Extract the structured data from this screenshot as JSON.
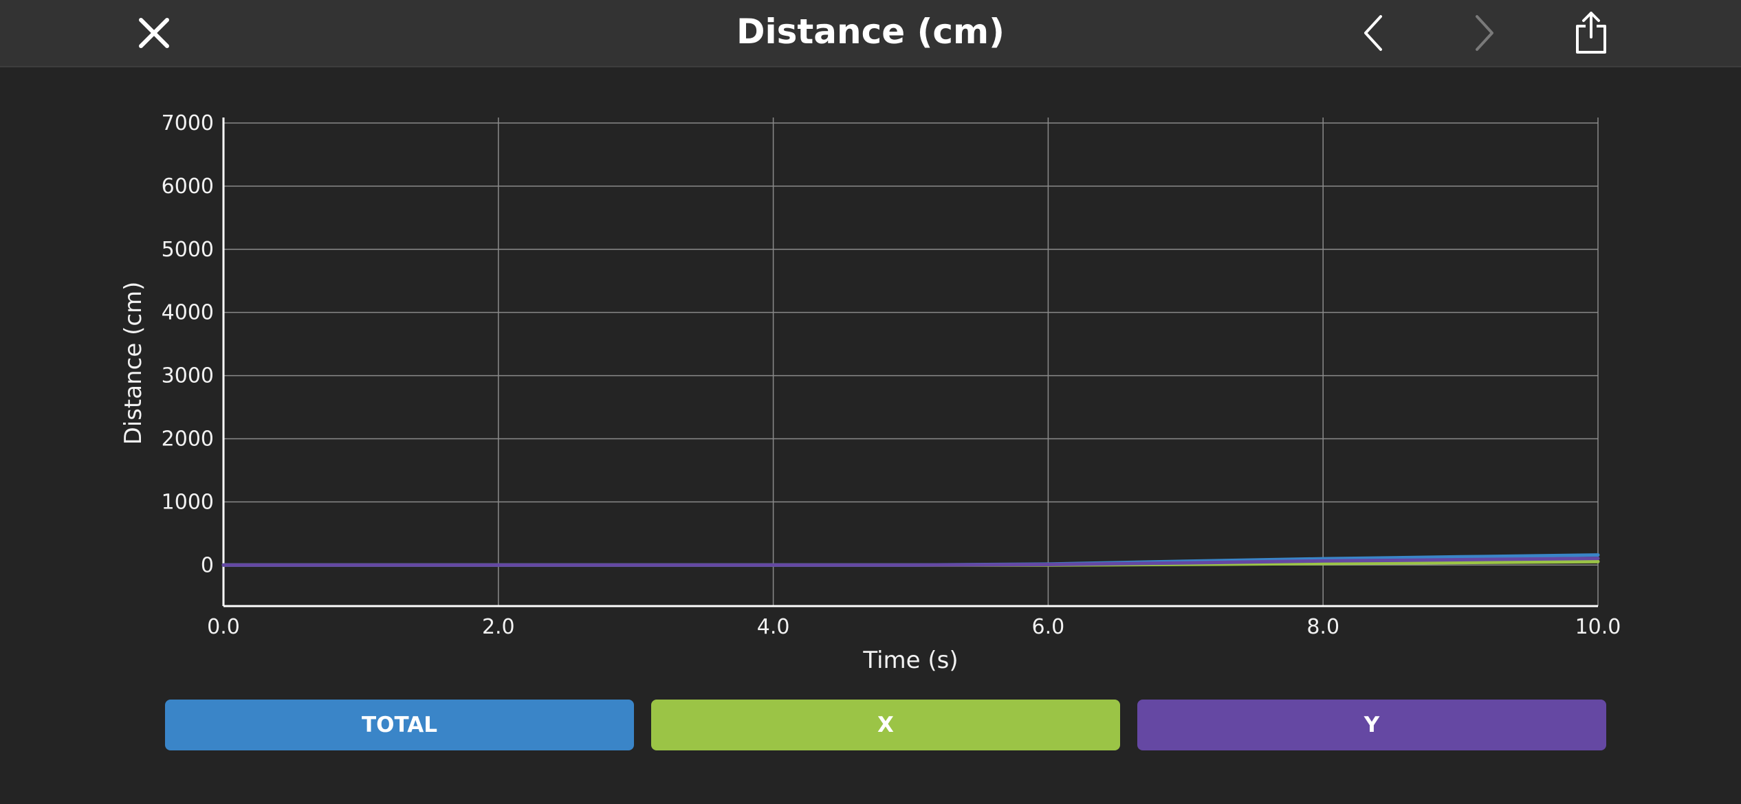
{
  "header": {
    "title": "Distance (cm)"
  },
  "icons": {
    "close": "close-icon",
    "prev": "chevron-left-icon",
    "next": "chevron-right-icon",
    "share": "share-icon"
  },
  "buttons": {
    "total": "TOTAL",
    "x": "X",
    "y": "Y"
  },
  "colors": {
    "background": "#242424",
    "header": "#333333",
    "grid": "#8a8a8a",
    "axis": "#ffffff",
    "total": "#3a85c8",
    "x": "#9bc446",
    "y": "#6548a3",
    "next_disabled": "#7a7a7a"
  },
  "chart_data": {
    "type": "line",
    "title": "",
    "xlabel": "Time (s)",
    "ylabel": "Distance (cm)",
    "xlim": [
      0,
      10
    ],
    "ylim": [
      -650,
      7000
    ],
    "grid": true,
    "x_ticks": [
      "0.0",
      "2.0",
      "4.0",
      "6.0",
      "8.0",
      "10.0"
    ],
    "y_ticks": [
      "7000",
      "6000",
      "5000",
      "4000",
      "3000",
      "2000",
      "1000",
      "0"
    ],
    "legend": "bottom",
    "series": [
      {
        "name": "TOTAL",
        "color": "#3a85c8",
        "points": [
          [
            0,
            0
          ],
          [
            5,
            0
          ],
          [
            6,
            15
          ],
          [
            7,
            60
          ],
          [
            8,
            100
          ],
          [
            9,
            130
          ],
          [
            10,
            160
          ]
        ]
      },
      {
        "name": "X",
        "color": "#9bc446",
        "points": [
          [
            0,
            0
          ],
          [
            5,
            0
          ],
          [
            6,
            0
          ],
          [
            7,
            10
          ],
          [
            8,
            25
          ],
          [
            9,
            40
          ],
          [
            10,
            55
          ]
        ]
      },
      {
        "name": "Y",
        "color": "#6548a3",
        "points": [
          [
            0,
            0
          ],
          [
            5,
            0
          ],
          [
            6,
            8
          ],
          [
            7,
            35
          ],
          [
            8,
            65
          ],
          [
            9,
            85
          ],
          [
            10,
            105
          ]
        ]
      }
    ]
  }
}
